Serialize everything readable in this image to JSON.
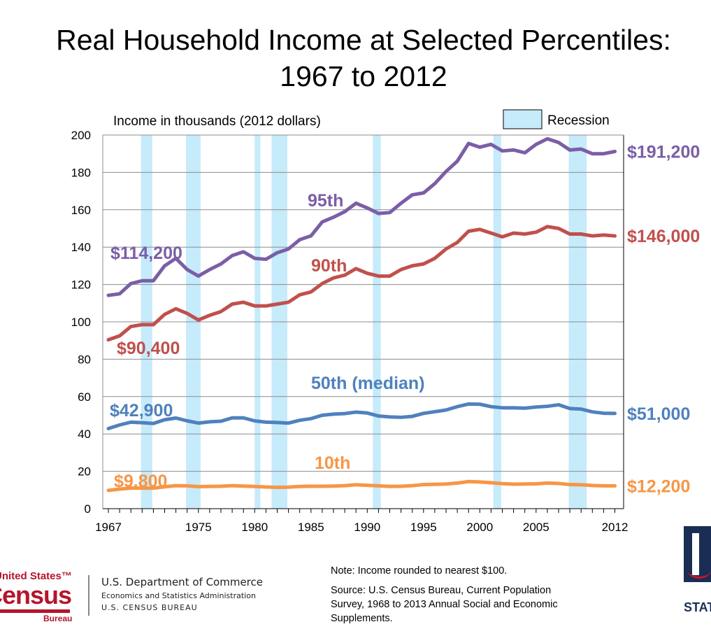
{
  "title_line1": "Real Household Income at Selected Percentiles:",
  "title_line2": "1967 to 2012",
  "chart_data": {
    "type": "line",
    "ylabel": "Income in thousands (2012 dollars)",
    "ylim": [
      0,
      200
    ],
    "yticks": [
      0,
      20,
      40,
      60,
      80,
      100,
      120,
      140,
      160,
      180,
      200
    ],
    "xlim": [
      1967,
      2012
    ],
    "xtick_labels": [
      "1967",
      "1975",
      "1980",
      "1985",
      "1990",
      "1995",
      "2000",
      "2005",
      "2012"
    ],
    "grid": "horizontal",
    "legend": {
      "label": "Recession",
      "placement": "top-right"
    },
    "x": [
      1967,
      1968,
      1969,
      1970,
      1971,
      1972,
      1973,
      1974,
      1975,
      1976,
      1977,
      1978,
      1979,
      1980,
      1981,
      1982,
      1983,
      1984,
      1985,
      1986,
      1987,
      1988,
      1989,
      1990,
      1991,
      1992,
      1993,
      1994,
      1995,
      1996,
      1997,
      1998,
      1999,
      2000,
      2001,
      2002,
      2003,
      2004,
      2005,
      2006,
      2007,
      2008,
      2009,
      2010,
      2011,
      2012
    ],
    "series": [
      {
        "name": "95th",
        "color": "#7B5EA7",
        "start_label": "$114,200",
        "end_label": "$191,200",
        "values": [
          114.2,
          115,
          120.5,
          122,
          122,
          130,
          134,
          128,
          124.5,
          128,
          131,
          135.5,
          137.5,
          134,
          133.5,
          137,
          139,
          144,
          146,
          153.5,
          156,
          159,
          163.5,
          161,
          158,
          158.5,
          163.5,
          168,
          169,
          174,
          180.5,
          186,
          195.5,
          193.5,
          195,
          191.5,
          192,
          190.5,
          195,
          198,
          196,
          192,
          192.5,
          190,
          190,
          191.2
        ]
      },
      {
        "name": "90th",
        "color": "#C0504D",
        "start_label": "$90,400",
        "end_label": "$146,000",
        "values": [
          90.4,
          92.5,
          97.5,
          98.5,
          98.5,
          104,
          107,
          104.5,
          101,
          103.5,
          105.5,
          109.5,
          110.5,
          108.5,
          108.5,
          109.5,
          110.5,
          114.5,
          116,
          120.5,
          123.5,
          125,
          128.5,
          126,
          124.5,
          124.5,
          128,
          130,
          131,
          134,
          139,
          142.5,
          148.5,
          149.5,
          147.5,
          145.5,
          147.5,
          147,
          148,
          151,
          150,
          147,
          147,
          146,
          146.5,
          146.0
        ]
      },
      {
        "name": "50th (median)",
        "color": "#4F81BD",
        "start_label": "$42,900",
        "end_label": "$51,000",
        "values": [
          42.9,
          44.8,
          46.3,
          46,
          45.6,
          47.6,
          48.5,
          47,
          45.8,
          46.5,
          46.8,
          48.6,
          48.6,
          47,
          46.3,
          46.1,
          45.8,
          47.3,
          48.2,
          50,
          50.6,
          50.9,
          51.7,
          51.2,
          49.6,
          49.1,
          48.9,
          49.4,
          51,
          51.9,
          52.8,
          54.6,
          56,
          55.9,
          54.6,
          54,
          54,
          53.8,
          54.4,
          54.8,
          55.6,
          53.6,
          53.3,
          51.8,
          51.1,
          51.0
        ]
      },
      {
        "name": "10th",
        "color": "#F79646",
        "start_label": "$9,800",
        "end_label": "$12,200",
        "values": [
          9.8,
          10.5,
          11,
          11,
          11,
          11.7,
          12.3,
          12.2,
          11.8,
          11.9,
          12,
          12.3,
          12.1,
          11.9,
          11.6,
          11.4,
          11.5,
          11.9,
          12,
          12,
          12.1,
          12.3,
          12.8,
          12.5,
          12.2,
          11.9,
          12,
          12.3,
          12.9,
          13,
          13.2,
          13.7,
          14.5,
          14.3,
          13.9,
          13.4,
          13.1,
          13.2,
          13.3,
          13.7,
          13.5,
          12.9,
          12.8,
          12.4,
          12.2,
          12.2
        ]
      }
    ],
    "recessions": [
      [
        1969.9,
        1970.9
      ],
      [
        1973.9,
        1975.2
      ],
      [
        1980.0,
        1980.5
      ],
      [
        1981.5,
        1982.9
      ],
      [
        1990.5,
        1991.2
      ],
      [
        2001.2,
        2001.9
      ],
      [
        2007.9,
        2009.5
      ]
    ],
    "recession_color": "#C6EBFB"
  },
  "footer": {
    "note": "Note: Income rounded to nearest $100.",
    "source_lines": [
      "Source: U.S. Census Bureau, Current Population",
      "Survey, 1968 to 2013 Annual Social and Economic",
      "Supplements."
    ],
    "dept": "U.S. Department of Commerce",
    "esa": "Economics and Statistics Administration",
    "bureau": "U.S. CENSUS BUREAU",
    "logo_text": [
      "United States™",
      "Census",
      "Bureau"
    ]
  }
}
